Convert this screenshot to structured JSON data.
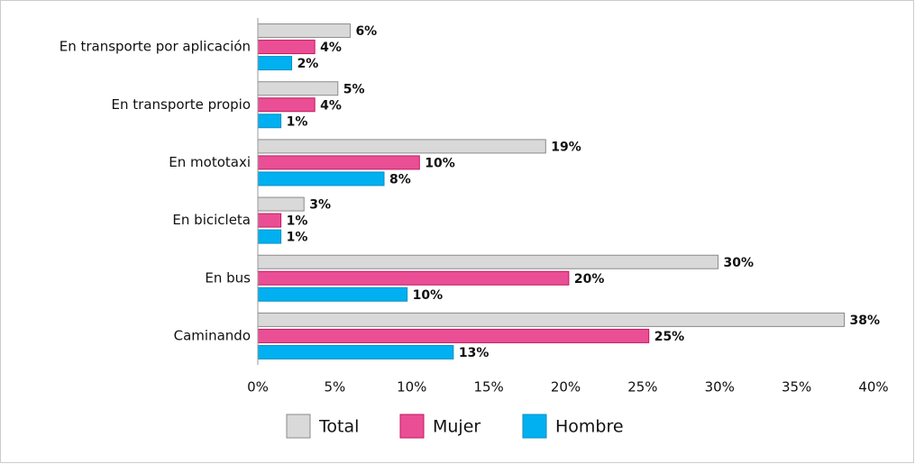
{
  "chart_data": {
    "type": "bar",
    "orientation": "horizontal",
    "categories": [
      "En transporte por aplicación",
      "En transporte propio",
      "En mototaxi",
      "En bicicleta",
      "En bus",
      "Caminando"
    ],
    "series": [
      {
        "name": "Total",
        "color": "#d9d9d9",
        "stroke": "#8a8a8a",
        "values": [
          6,
          5.2,
          18.7,
          3.0,
          29.9,
          38.1
        ],
        "value_labels": [
          "6%",
          "5%",
          "19%",
          "3%",
          "30%",
          "38%"
        ]
      },
      {
        "name": "Mujer",
        "color": "#ea4f96",
        "stroke": "#c2185b",
        "values": [
          3.7,
          3.7,
          10.5,
          1.5,
          20.2,
          25.4
        ],
        "value_labels": [
          "4%",
          "4%",
          "10%",
          "1%",
          "20%",
          "25%"
        ]
      },
      {
        "name": "Hombre",
        "color": "#00b0f0",
        "stroke": "#0a8fc4",
        "values": [
          2.2,
          1.5,
          8.2,
          1.5,
          9.7,
          12.7
        ],
        "value_labels": [
          "2%",
          "1%",
          "8%",
          "1%",
          "10%",
          "13%"
        ]
      }
    ],
    "xlim": [
      0,
      40
    ],
    "xticks": [
      {
        "value": 0,
        "label": "0%"
      },
      {
        "value": 5,
        "label": "5%"
      },
      {
        "value": 10,
        "label": "10%"
      },
      {
        "value": 15,
        "label": "15%"
      },
      {
        "value": 20,
        "label": "20%"
      },
      {
        "value": 25,
        "label": "25%"
      },
      {
        "value": 30,
        "label": "30%"
      },
      {
        "value": 35,
        "label": "35%"
      },
      {
        "value": 40,
        "label": "40%"
      }
    ],
    "legend": "bottom"
  }
}
